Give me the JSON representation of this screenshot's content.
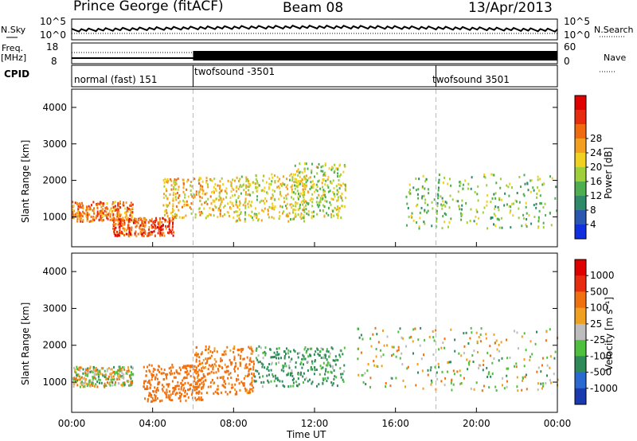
{
  "header": {
    "station": "Prince George (fitACF)",
    "beam": "Beam 08",
    "date": "13/Apr/2013"
  },
  "left_labels": {
    "nsky": "N.Sky",
    "freq": "Freq.",
    "mhz": "[MHz]",
    "cpid": "CPID"
  },
  "right_labels": {
    "nsearch": "N.Search",
    "nave": "Nave"
  },
  "noise_axis": {
    "left_top": "10^5",
    "left_bottom": "10^0",
    "right_top": "10^5",
    "right_bottom": "10^0"
  },
  "freq_axis": {
    "left_top": "18",
    "left_bottom": "8",
    "right_top": "60",
    "right_bottom": "0"
  },
  "cpid_segments": [
    {
      "label": "normal (fast) 151",
      "start_h": 0
    },
    {
      "label": "twofsound -3501",
      "start_h": 6
    },
    {
      "label": "twofsound 3501",
      "start_h": 18
    }
  ],
  "colors": {
    "frame": "#000000",
    "dashed_marker": "#bbbbbb",
    "ground_scatter": "#bdbdbd"
  },
  "chart_data": [
    {
      "type": "heatmap",
      "panel": "power",
      "ylabel": "Slant Range [km]",
      "xlabel": "",
      "ylim": [
        180,
        4500
      ],
      "xlim_hours": [
        0,
        24
      ],
      "yticks": [
        "1000",
        "2000",
        "3000",
        "4000"
      ],
      "colorbar_label": "Power [dB]",
      "colorbar_ticks": [
        "4",
        "8",
        "12",
        "16",
        "20",
        "24",
        "28"
      ],
      "colorbar_colors": [
        "#1030e0",
        "#2a58b0",
        "#2f8a6a",
        "#4fae4f",
        "#9fcf3a",
        "#f0d020",
        "#f3a020",
        "#f06a10",
        "#e82c10",
        "#e00000"
      ],
      "echo_regions": [
        {
          "t0": 0.0,
          "t1": 3.0,
          "r0": 900,
          "r1": 1450,
          "level": 24
        },
        {
          "t0": 2.0,
          "t1": 5.0,
          "r0": 500,
          "r1": 1000,
          "level": 26
        },
        {
          "t0": 4.5,
          "t1": 8.0,
          "r0": 1000,
          "r1": 2100,
          "level": 20
        },
        {
          "t0": 8.0,
          "t1": 11.5,
          "r0": 900,
          "r1": 2200,
          "level": 18
        },
        {
          "t0": 11.0,
          "t1": 13.5,
          "r0": 1000,
          "r1": 2500,
          "level": 16
        },
        {
          "t0": 16.5,
          "t1": 24.0,
          "r0": 700,
          "r1": 2200,
          "level": 14
        }
      ]
    },
    {
      "type": "heatmap",
      "panel": "velocity",
      "ylabel": "Slant Range [km]",
      "xlabel": "Time UT",
      "ylim": [
        180,
        4500
      ],
      "xlim_hours": [
        0,
        24
      ],
      "yticks": [
        "1000",
        "2000",
        "3000",
        "4000"
      ],
      "xticks": [
        "00:00",
        "04:00",
        "08:00",
        "12:00",
        "16:00",
        "20:00",
        "00:00"
      ],
      "colorbar_label": "Velocity [m s⁻¹]",
      "colorbar_ticks": [
        "1000",
        "500",
        "100",
        "25",
        "-25",
        "-100",
        "-500",
        "-1000"
      ],
      "colorbar_colors": [
        "#1a3ab0",
        "#2a6ad0",
        "#2f8a5a",
        "#4fbf3f",
        "#bdbdbd",
        "#f0a020",
        "#f07010",
        "#e82c10",
        "#e00000"
      ],
      "echo_regions": [
        {
          "t0": 0.0,
          "t1": 3.0,
          "r0": 900,
          "r1": 1450,
          "level": 0
        },
        {
          "t0": 3.5,
          "t1": 6.5,
          "r0": 500,
          "r1": 1500,
          "level": -300
        },
        {
          "t0": 6.0,
          "t1": 9.0,
          "r0": 700,
          "r1": 2000,
          "level": -200
        },
        {
          "t0": 9.0,
          "t1": 13.5,
          "r0": 900,
          "r1": 2000,
          "level": 150
        },
        {
          "t0": 14.0,
          "t1": 24.0,
          "r0": 800,
          "r1": 2500,
          "level": 0
        }
      ]
    }
  ]
}
